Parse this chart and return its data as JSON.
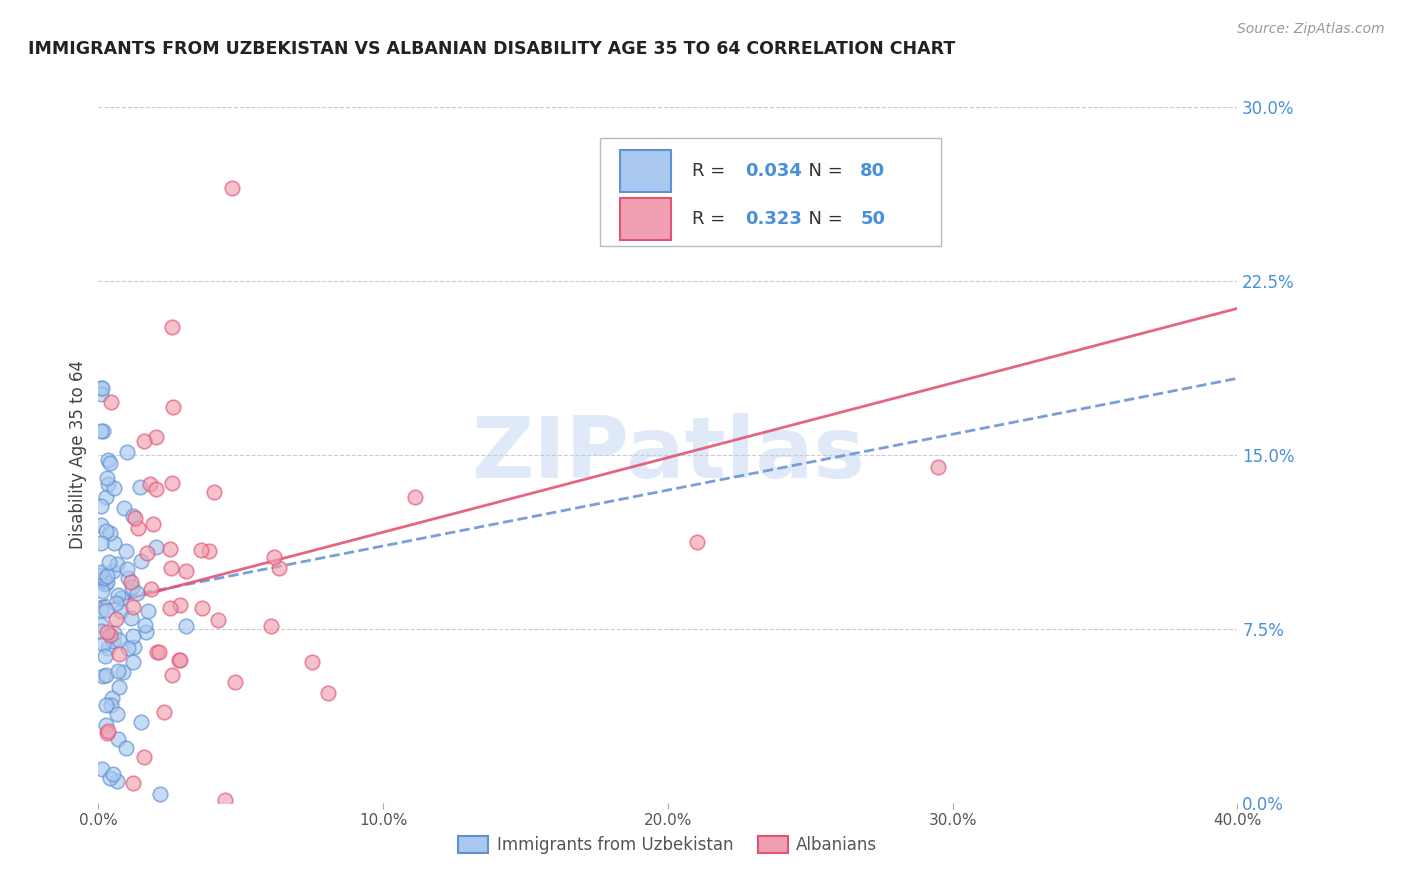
{
  "title": "IMMIGRANTS FROM UZBEKISTAN VS ALBANIAN DISABILITY AGE 35 TO 64 CORRELATION CHART",
  "source": "Source: ZipAtlas.com",
  "ylabel": "Disability Age 35 to 64",
  "R1": "0.034",
  "N1": "80",
  "R2": "0.323",
  "N2": "50",
  "color1": "#a8c8f0",
  "color2": "#f0a0b0",
  "trendline1_color": "#6090d0",
  "trendline2_color": "#e05575",
  "legend_label1": "Immigrants from Uzbekistan",
  "legend_label2": "Albanians",
  "xmin": 0.0,
  "xmax": 0.4,
  "ymin": 0.0,
  "ymax": 0.3,
  "xticks": [
    0.0,
    0.1,
    0.2,
    0.3,
    0.4
  ],
  "xtick_labels": [
    "0.0%",
    "10.0%",
    "20.0%",
    "30.0%",
    "40.0%"
  ],
  "yticks": [
    0.0,
    0.075,
    0.15,
    0.225,
    0.3
  ],
  "ytick_labels": [
    "0.0%",
    "7.5%",
    "15.0%",
    "22.5%",
    "30.0%"
  ],
  "watermark": "ZIPatlas",
  "tick_color": "#4a90d9",
  "grid_color": "#cccccc",
  "title_color": "#222222",
  "source_color": "#999999",
  "ylabel_color": "#444444"
}
